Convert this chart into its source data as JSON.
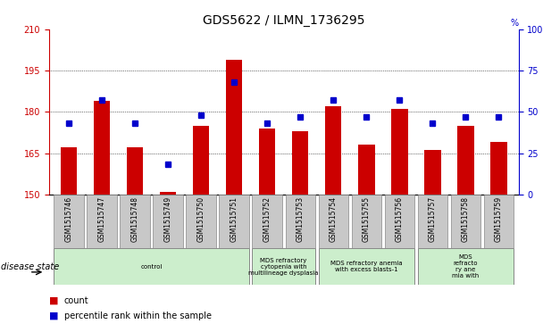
{
  "title": "GDS5622 / ILMN_1736295",
  "samples": [
    "GSM1515746",
    "GSM1515747",
    "GSM1515748",
    "GSM1515749",
    "GSM1515750",
    "GSM1515751",
    "GSM1515752",
    "GSM1515753",
    "GSM1515754",
    "GSM1515755",
    "GSM1515756",
    "GSM1515757",
    "GSM1515758",
    "GSM1515759"
  ],
  "counts": [
    167,
    184,
    167,
    151,
    175,
    199,
    174,
    173,
    182,
    168,
    181,
    166,
    175,
    169
  ],
  "percentiles": [
    43,
    57,
    43,
    18,
    48,
    68,
    43,
    47,
    57,
    47,
    57,
    43,
    47,
    47
  ],
  "disease_groups": [
    {
      "label": "control",
      "start": 0,
      "end": 5
    },
    {
      "label": "MDS refractory\ncytopenia with\nmultilineage dysplasia",
      "start": 6,
      "end": 7
    },
    {
      "label": "MDS refractory anemia\nwith excess blasts-1",
      "start": 8,
      "end": 10
    },
    {
      "label": "MDS\nrefracto\nry ane\nmia with",
      "start": 11,
      "end": 13
    }
  ],
  "ylim_left": [
    150,
    210
  ],
  "ylim_right": [
    0,
    100
  ],
  "yticks_left": [
    150,
    165,
    180,
    195,
    210
  ],
  "yticks_right": [
    0,
    25,
    50,
    75,
    100
  ],
  "bar_color": "#cc0000",
  "marker_color": "#0000cc",
  "bar_width": 0.5,
  "title_fontsize": 10,
  "tick_fontsize": 7,
  "label_color_left": "#cc0000",
  "label_color_right": "#0000cc",
  "plot_bg": "#ffffff",
  "sample_box_color": "#c8c8c8",
  "disease_box_color": "#cceecc"
}
